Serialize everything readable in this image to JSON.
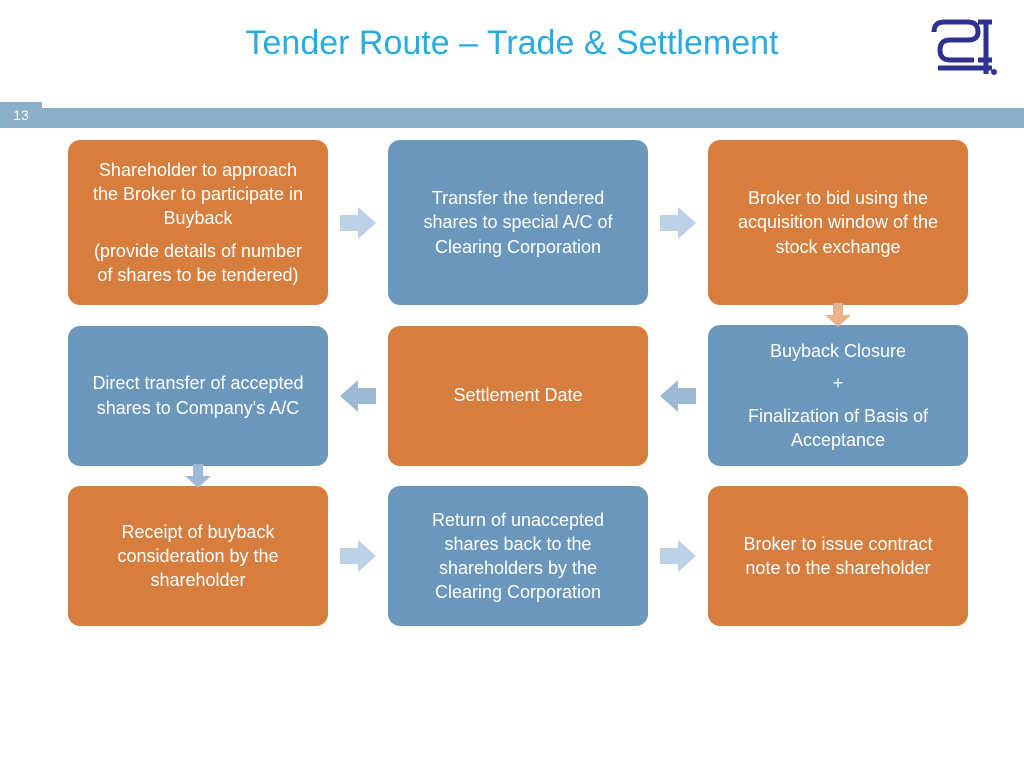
{
  "title": {
    "text": "Tender Route – Trade & Settlement",
    "color": "#29abe2",
    "fontsize": 34
  },
  "page_number": "13",
  "stripe_color": "#8aafc9",
  "pagebox_color": "#8aafc9",
  "logo_color": "#2e3192",
  "colors": {
    "orange": "#d77e3f",
    "blue": "#6c97bd",
    "arrow_light": "#bcd0e6",
    "arrow_mid": "#9db9d5",
    "arrow_orange": "#e9b28b"
  },
  "boxes": {
    "r1c1": {
      "lines": [
        "Shareholder to approach the Broker to participate in Buyback",
        "(provide details of number of shares to be tendered)"
      ],
      "color": "orange"
    },
    "r1c2": {
      "lines": [
        "Transfer the tendered shares to special A/C of Clearing Corporation"
      ],
      "color": "blue"
    },
    "r1c3": {
      "lines": [
        "Broker to bid using the acquisition window of the stock exchange"
      ],
      "color": "orange"
    },
    "r2c1": {
      "lines": [
        "Direct transfer of accepted shares to Company's A/C"
      ],
      "color": "blue"
    },
    "r2c2": {
      "lines": [
        "Settlement Date"
      ],
      "color": "orange"
    },
    "r2c3": {
      "lines": [
        "Buyback Closure",
        "+",
        "Finalization of Basis of Acceptance"
      ],
      "color": "blue"
    },
    "r3c1": {
      "lines": [
        "Receipt of buyback consideration by the shareholder"
      ],
      "color": "orange"
    },
    "r3c2": {
      "lines": [
        "Return of unaccepted shares back to  the shareholders by the Clearing Corporation"
      ],
      "color": "blue"
    },
    "r3c3": {
      "lines": [
        "Broker to issue contract note to the shareholder"
      ],
      "color": "orange"
    }
  },
  "arrows": {
    "r1a1": {
      "dir": "right",
      "color": "arrow_light"
    },
    "r1a2": {
      "dir": "right",
      "color": "arrow_light"
    },
    "r2a1": {
      "dir": "left",
      "color": "arrow_mid"
    },
    "r2a2": {
      "dir": "left",
      "color": "arrow_mid"
    },
    "r3a1": {
      "dir": "right",
      "color": "arrow_light"
    },
    "r3a2": {
      "dir": "right",
      "color": "arrow_light"
    },
    "v1": {
      "dir": "down",
      "color": "arrow_orange",
      "col": 3
    },
    "v2": {
      "dir": "down",
      "color": "arrow_mid",
      "col": 1
    }
  }
}
